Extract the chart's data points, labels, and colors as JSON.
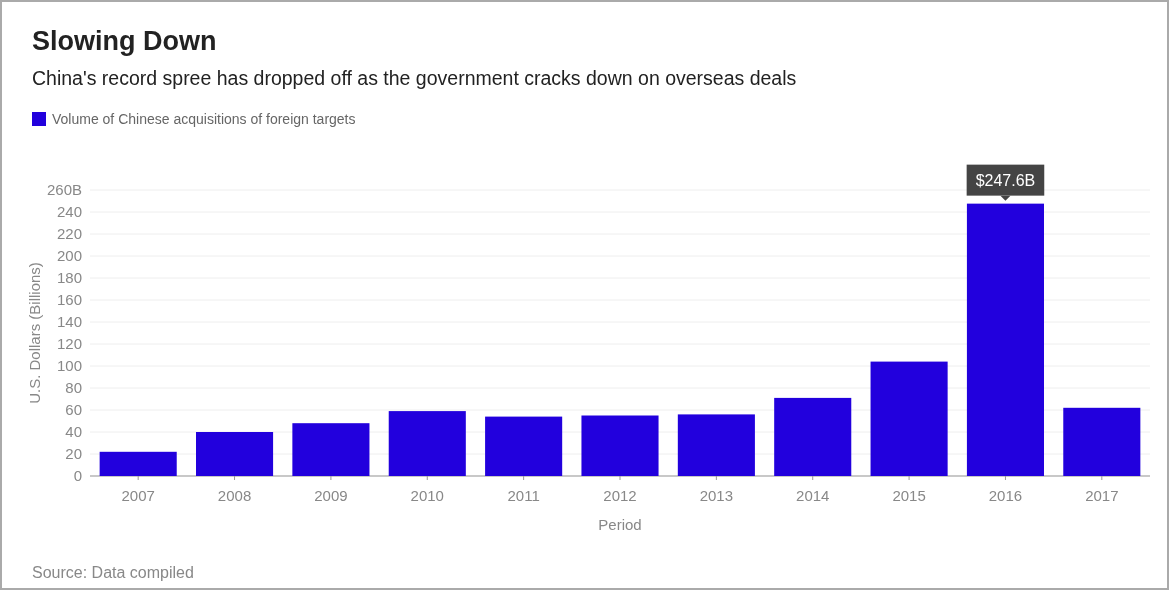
{
  "chart_data": {
    "type": "bar",
    "title": "Slowing Down",
    "subtitle": "China's record spree has dropped off as the government cracks down on overseas deals",
    "xlabel": "Period",
    "ylabel": "U.S. Dollars (Billions)",
    "categories": [
      "2007",
      "2008",
      "2009",
      "2010",
      "2011",
      "2012",
      "2013",
      "2014",
      "2015",
      "2016",
      "2017"
    ],
    "series": [
      {
        "name": "Volume of Chinese acquisitions of foreign targets",
        "color": "#2200dd",
        "values": [
          22,
          40,
          48,
          59,
          54,
          55,
          56,
          71,
          104,
          247.6,
          62
        ],
        "value_labels": [
          null,
          null,
          null,
          null,
          null,
          null,
          null,
          null,
          null,
          "$247.6B",
          null
        ]
      }
    ],
    "ylim": [
      0,
      260
    ],
    "yticks": [
      0,
      20,
      40,
      60,
      80,
      100,
      120,
      140,
      160,
      180,
      200,
      220,
      240,
      {
        "value": 260,
        "label": "260B"
      }
    ],
    "grid": "y",
    "legend": "top left",
    "annotations": [
      "Source: Data compiled"
    ]
  }
}
